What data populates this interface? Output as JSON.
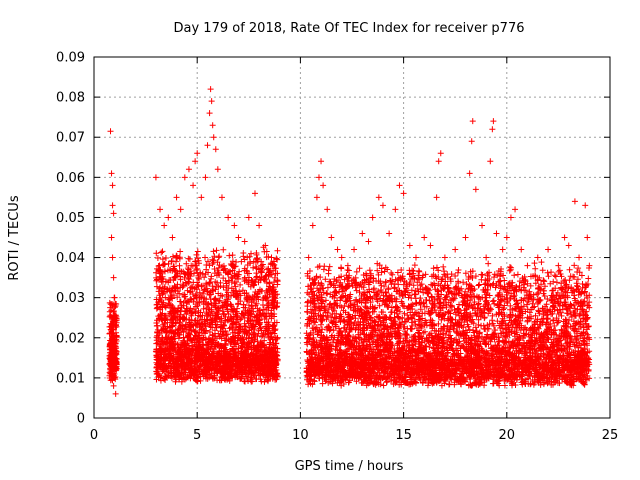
{
  "chart_data": {
    "type": "scatter",
    "title": "Day 179 of 2018, Rate Of TEC Index for receiver p776",
    "xlabel": "GPS time / hours",
    "ylabel": "ROTI / TECUs",
    "xlim": [
      0,
      25
    ],
    "ylim": [
      0,
      0.09
    ],
    "xticks": [
      0,
      5,
      10,
      15,
      20,
      25
    ],
    "yticks": [
      0,
      0.01,
      0.02,
      0.03,
      0.04,
      0.05,
      0.06,
      0.07,
      0.08,
      0.09
    ],
    "xtick_labels": [
      "0",
      "5",
      "10",
      "15",
      "20",
      "25"
    ],
    "ytick_labels": [
      "0",
      "0.01",
      "0.02",
      "0.03",
      "0.04",
      "0.05",
      "0.06",
      "0.07",
      "0.08",
      "0.09"
    ],
    "grid": true,
    "marker": "+",
    "color": "#ff0000",
    "series": [
      {
        "points": [
          [
            0.8,
            0.0715
          ],
          [
            0.85,
            0.061
          ],
          [
            0.9,
            0.058
          ],
          [
            0.9,
            0.053
          ],
          [
            0.95,
            0.051
          ],
          [
            0.85,
            0.045
          ],
          [
            0.9,
            0.04
          ],
          [
            0.95,
            0.035
          ],
          [
            1.0,
            0.03
          ],
          [
            0.9,
            0.028
          ],
          [
            0.95,
            0.022
          ],
          [
            1.0,
            0.018
          ],
          [
            0.85,
            0.015
          ],
          [
            0.9,
            0.012
          ],
          [
            1.0,
            0.01
          ],
          [
            0.95,
            0.008
          ],
          [
            1.05,
            0.006
          ],
          [
            0.9,
            0.02
          ],
          [
            1.0,
            0.025
          ],
          [
            0.95,
            0.014
          ],
          [
            3.0,
            0.06
          ],
          [
            3.2,
            0.052
          ],
          [
            3.4,
            0.048
          ],
          [
            3.6,
            0.05
          ],
          [
            3.8,
            0.045
          ],
          [
            4.0,
            0.055
          ],
          [
            4.2,
            0.052
          ],
          [
            4.4,
            0.06
          ],
          [
            4.6,
            0.062
          ],
          [
            4.8,
            0.058
          ],
          [
            4.9,
            0.064
          ],
          [
            5.0,
            0.066
          ],
          [
            5.2,
            0.055
          ],
          [
            5.4,
            0.06
          ],
          [
            5.5,
            0.068
          ],
          [
            5.6,
            0.076
          ],
          [
            5.65,
            0.082
          ],
          [
            5.7,
            0.079
          ],
          [
            5.75,
            0.073
          ],
          [
            5.8,
            0.07
          ],
          [
            5.9,
            0.067
          ],
          [
            6.0,
            0.062
          ],
          [
            6.2,
            0.055
          ],
          [
            6.5,
            0.05
          ],
          [
            6.8,
            0.048
          ],
          [
            7.0,
            0.045
          ],
          [
            7.3,
            0.044
          ],
          [
            7.5,
            0.05
          ],
          [
            7.8,
            0.056
          ],
          [
            8.0,
            0.048
          ],
          [
            8.3,
            0.043
          ],
          [
            8.6,
            0.04
          ],
          [
            8.8,
            0.036
          ],
          [
            10.4,
            0.04
          ],
          [
            10.6,
            0.048
          ],
          [
            10.8,
            0.055
          ],
          [
            10.9,
            0.06
          ],
          [
            11.0,
            0.064
          ],
          [
            11.1,
            0.058
          ],
          [
            11.3,
            0.052
          ],
          [
            11.5,
            0.045
          ],
          [
            11.8,
            0.042
          ],
          [
            12.0,
            0.04
          ],
          [
            12.3,
            0.038
          ],
          [
            12.6,
            0.042
          ],
          [
            13.0,
            0.046
          ],
          [
            13.3,
            0.044
          ],
          [
            13.5,
            0.05
          ],
          [
            13.8,
            0.055
          ],
          [
            14.0,
            0.053
          ],
          [
            14.3,
            0.046
          ],
          [
            14.6,
            0.052
          ],
          [
            14.8,
            0.058
          ],
          [
            15.0,
            0.056
          ],
          [
            15.3,
            0.043
          ],
          [
            15.6,
            0.04
          ],
          [
            16.0,
            0.045
          ],
          [
            16.3,
            0.043
          ],
          [
            16.6,
            0.055
          ],
          [
            16.7,
            0.064
          ],
          [
            16.8,
            0.066
          ],
          [
            17.0,
            0.04
          ],
          [
            17.5,
            0.042
          ],
          [
            18.0,
            0.045
          ],
          [
            18.2,
            0.061
          ],
          [
            18.3,
            0.069
          ],
          [
            18.35,
            0.074
          ],
          [
            18.5,
            0.057
          ],
          [
            18.8,
            0.048
          ],
          [
            19.0,
            0.04
          ],
          [
            19.2,
            0.064
          ],
          [
            19.3,
            0.072
          ],
          [
            19.35,
            0.074
          ],
          [
            19.5,
            0.046
          ],
          [
            19.8,
            0.042
          ],
          [
            20.0,
            0.045
          ],
          [
            20.2,
            0.05
          ],
          [
            20.4,
            0.052
          ],
          [
            20.7,
            0.042
          ],
          [
            21.0,
            0.038
          ],
          [
            21.5,
            0.04
          ],
          [
            22.0,
            0.042
          ],
          [
            22.5,
            0.038
          ],
          [
            22.8,
            0.045
          ],
          [
            23.0,
            0.043
          ],
          [
            23.3,
            0.054
          ],
          [
            23.5,
            0.04
          ],
          [
            23.8,
            0.053
          ],
          [
            23.9,
            0.045
          ],
          [
            24.0,
            0.038
          ]
        ]
      }
    ],
    "bands": [
      {
        "x_start": 0.75,
        "x_end": 1.1,
        "y_low": 0.005,
        "y_high": 0.028,
        "density": 260
      },
      {
        "x_start": 3.0,
        "x_end": 8.9,
        "y_low": 0.005,
        "y_high": 0.04,
        "density": 2600
      },
      {
        "x_start": 10.3,
        "x_end": 24.0,
        "y_low": 0.004,
        "y_high": 0.036,
        "density": 5200
      }
    ]
  }
}
